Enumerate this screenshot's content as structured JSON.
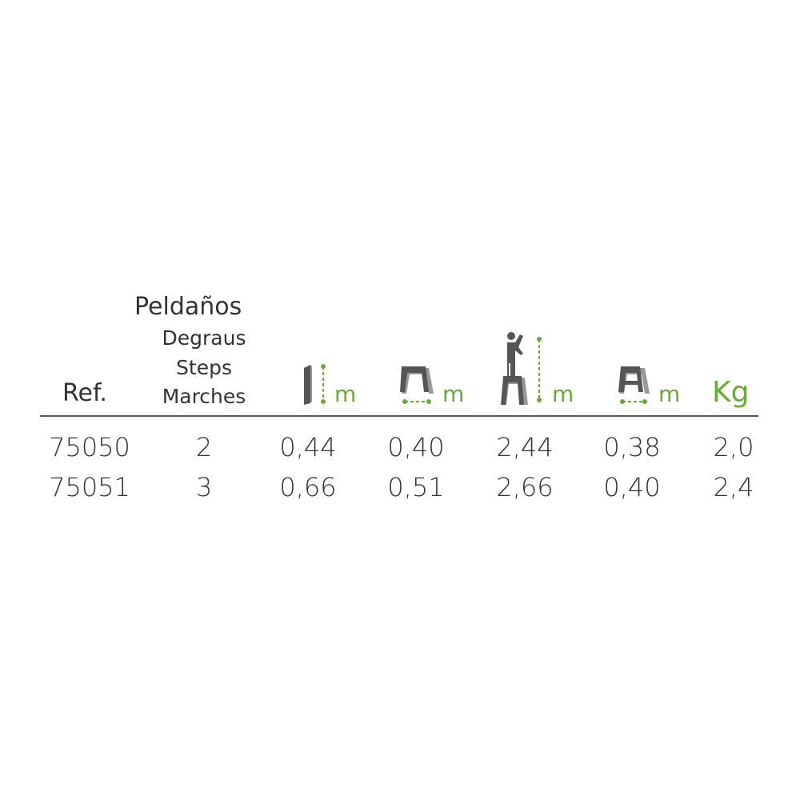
{
  "header": {
    "ref": "Ref.",
    "steps_labels": [
      "Peldaños",
      "Degraus",
      "Steps",
      "Marches"
    ],
    "columns": [
      {
        "icon": "closed-ladder-height-icon",
        "unit": "m"
      },
      {
        "icon": "ladder-base-width-icon",
        "unit": "m"
      },
      {
        "icon": "working-height-person-icon",
        "unit": "m"
      },
      {
        "icon": "ladder-depth-icon",
        "unit": "m"
      },
      {
        "icon": "weight",
        "unit": "Kg"
      }
    ]
  },
  "colors": {
    "accent": "#6aaa3a",
    "icon_gray": "#555555",
    "text": "#333333"
  },
  "rows": [
    {
      "ref": "75050",
      "steps": "2",
      "values": [
        "0,44",
        "0,40",
        "2,44",
        "0,38",
        "2,0"
      ]
    },
    {
      "ref": "75051",
      "steps": "3",
      "values": [
        "0,66",
        "0,51",
        "2,66",
        "0,40",
        "2,4"
      ]
    }
  ]
}
